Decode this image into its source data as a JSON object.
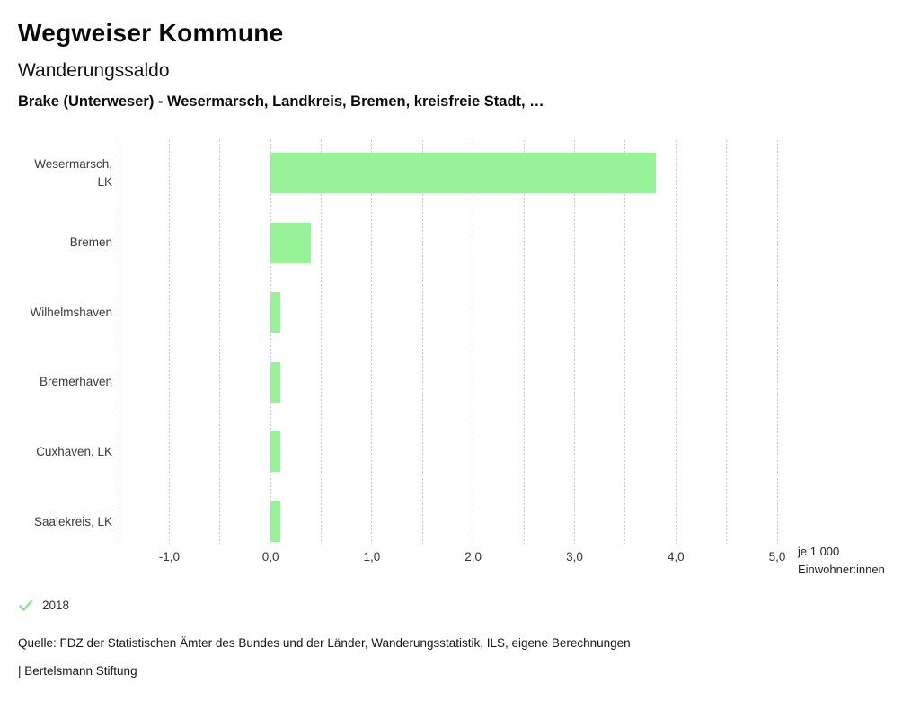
{
  "header": {
    "app_title": "Wegweiser Kommune",
    "chart_title": "Wanderungssaldo",
    "subtitle": "Brake (Unterweser) - Wesermarsch, Landkreis, Bremen, kreisfreie Stadt, …"
  },
  "chart_data": {
    "type": "bar",
    "orientation": "horizontal",
    "title": "Wanderungssaldo",
    "subtitle": "Brake (Unterweser) - Wesermarsch, Landkreis, Bremen, kreisfreie Stadt, …",
    "categories": [
      "Wesermarsch,\nLK",
      "Bremen",
      "Wilhelmshaven",
      "Bremerhaven",
      "Cuxhaven, LK",
      "Saalekreis, LK"
    ],
    "values": [
      3.8,
      0.4,
      0.1,
      0.1,
      0.1,
      0.1
    ],
    "series_name": "2018",
    "xlim": [
      -1.5,
      5.0
    ],
    "gridline_step": 0.5,
    "x_ticks": [
      {
        "value": -1,
        "label": "-1,0"
      },
      {
        "value": 0,
        "label": "0,0"
      },
      {
        "value": 1,
        "label": "1,0"
      },
      {
        "value": 2,
        "label": "2,0"
      },
      {
        "value": 3,
        "label": "3,0"
      },
      {
        "value": 4,
        "label": "4,0"
      },
      {
        "value": 5,
        "label": "5,0"
      }
    ],
    "unit_label_lines": [
      "je 1.000",
      "Einwohner:innen"
    ],
    "bar_color": "#98F298",
    "grid_color": "#C9C9C9",
    "legend_position": "bottom-left",
    "grid": true
  },
  "legend": {
    "year": "2018",
    "check_color": "#8EE08E"
  },
  "footer": {
    "source": "Quelle: FDZ der Statistischen Ämter des Bundes und der Länder, Wanderungsstatistik, ILS, eigene Berechnungen",
    "attribution": "| Bertelsmann Stiftung"
  }
}
